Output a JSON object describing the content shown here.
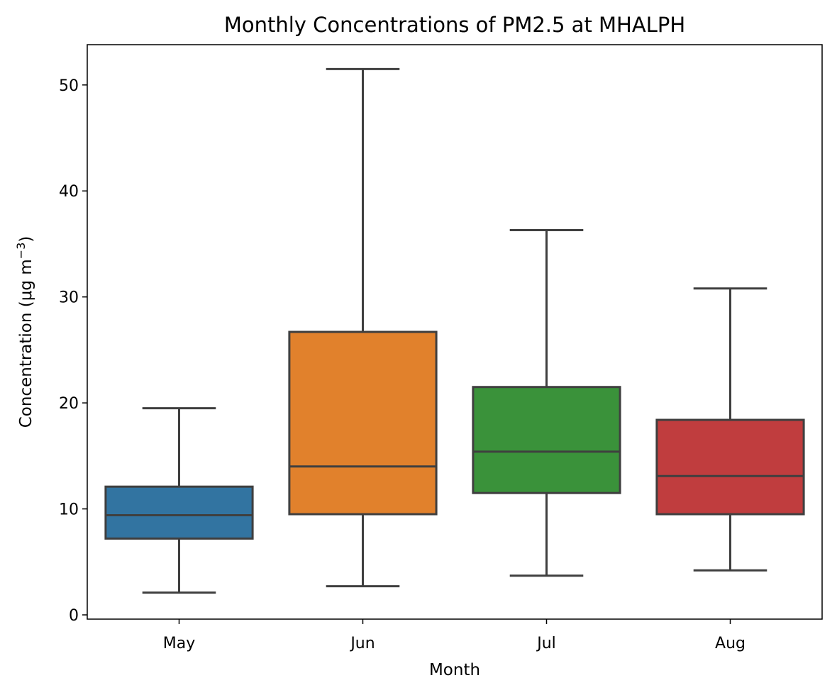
{
  "chart_data": {
    "type": "box",
    "title": "Monthly Concentrations of PM2.5 at MHALPH",
    "xlabel": "Month",
    "ylabel": "Concentration (μg m",
    "ylabel_unit_exponent": "−3",
    "ylabel_close": ")",
    "ylim": [
      -0.4,
      53.8
    ],
    "yticks": [
      0,
      10,
      20,
      30,
      40,
      50
    ],
    "categories": [
      "May",
      "Jun",
      "Jul",
      "Aug"
    ],
    "boxes": [
      {
        "category": "May",
        "whisker_low": 2.1,
        "q1": 7.2,
        "median": 9.4,
        "q3": 12.1,
        "whisker_high": 19.5,
        "color": "#3274a1"
      },
      {
        "category": "Jun",
        "whisker_low": 2.7,
        "q1": 9.5,
        "median": 14.0,
        "q3": 26.7,
        "whisker_high": 51.5,
        "color": "#e1812c"
      },
      {
        "category": "Jul",
        "whisker_low": 3.7,
        "q1": 11.5,
        "median": 15.4,
        "q3": 21.5,
        "whisker_high": 36.3,
        "color": "#3a923a"
      },
      {
        "category": "Aug",
        "whisker_low": 4.2,
        "q1": 9.5,
        "median": 13.1,
        "q3": 18.4,
        "whisker_high": 30.8,
        "color": "#c03d3e"
      }
    ],
    "grid": false,
    "legend": "none"
  }
}
